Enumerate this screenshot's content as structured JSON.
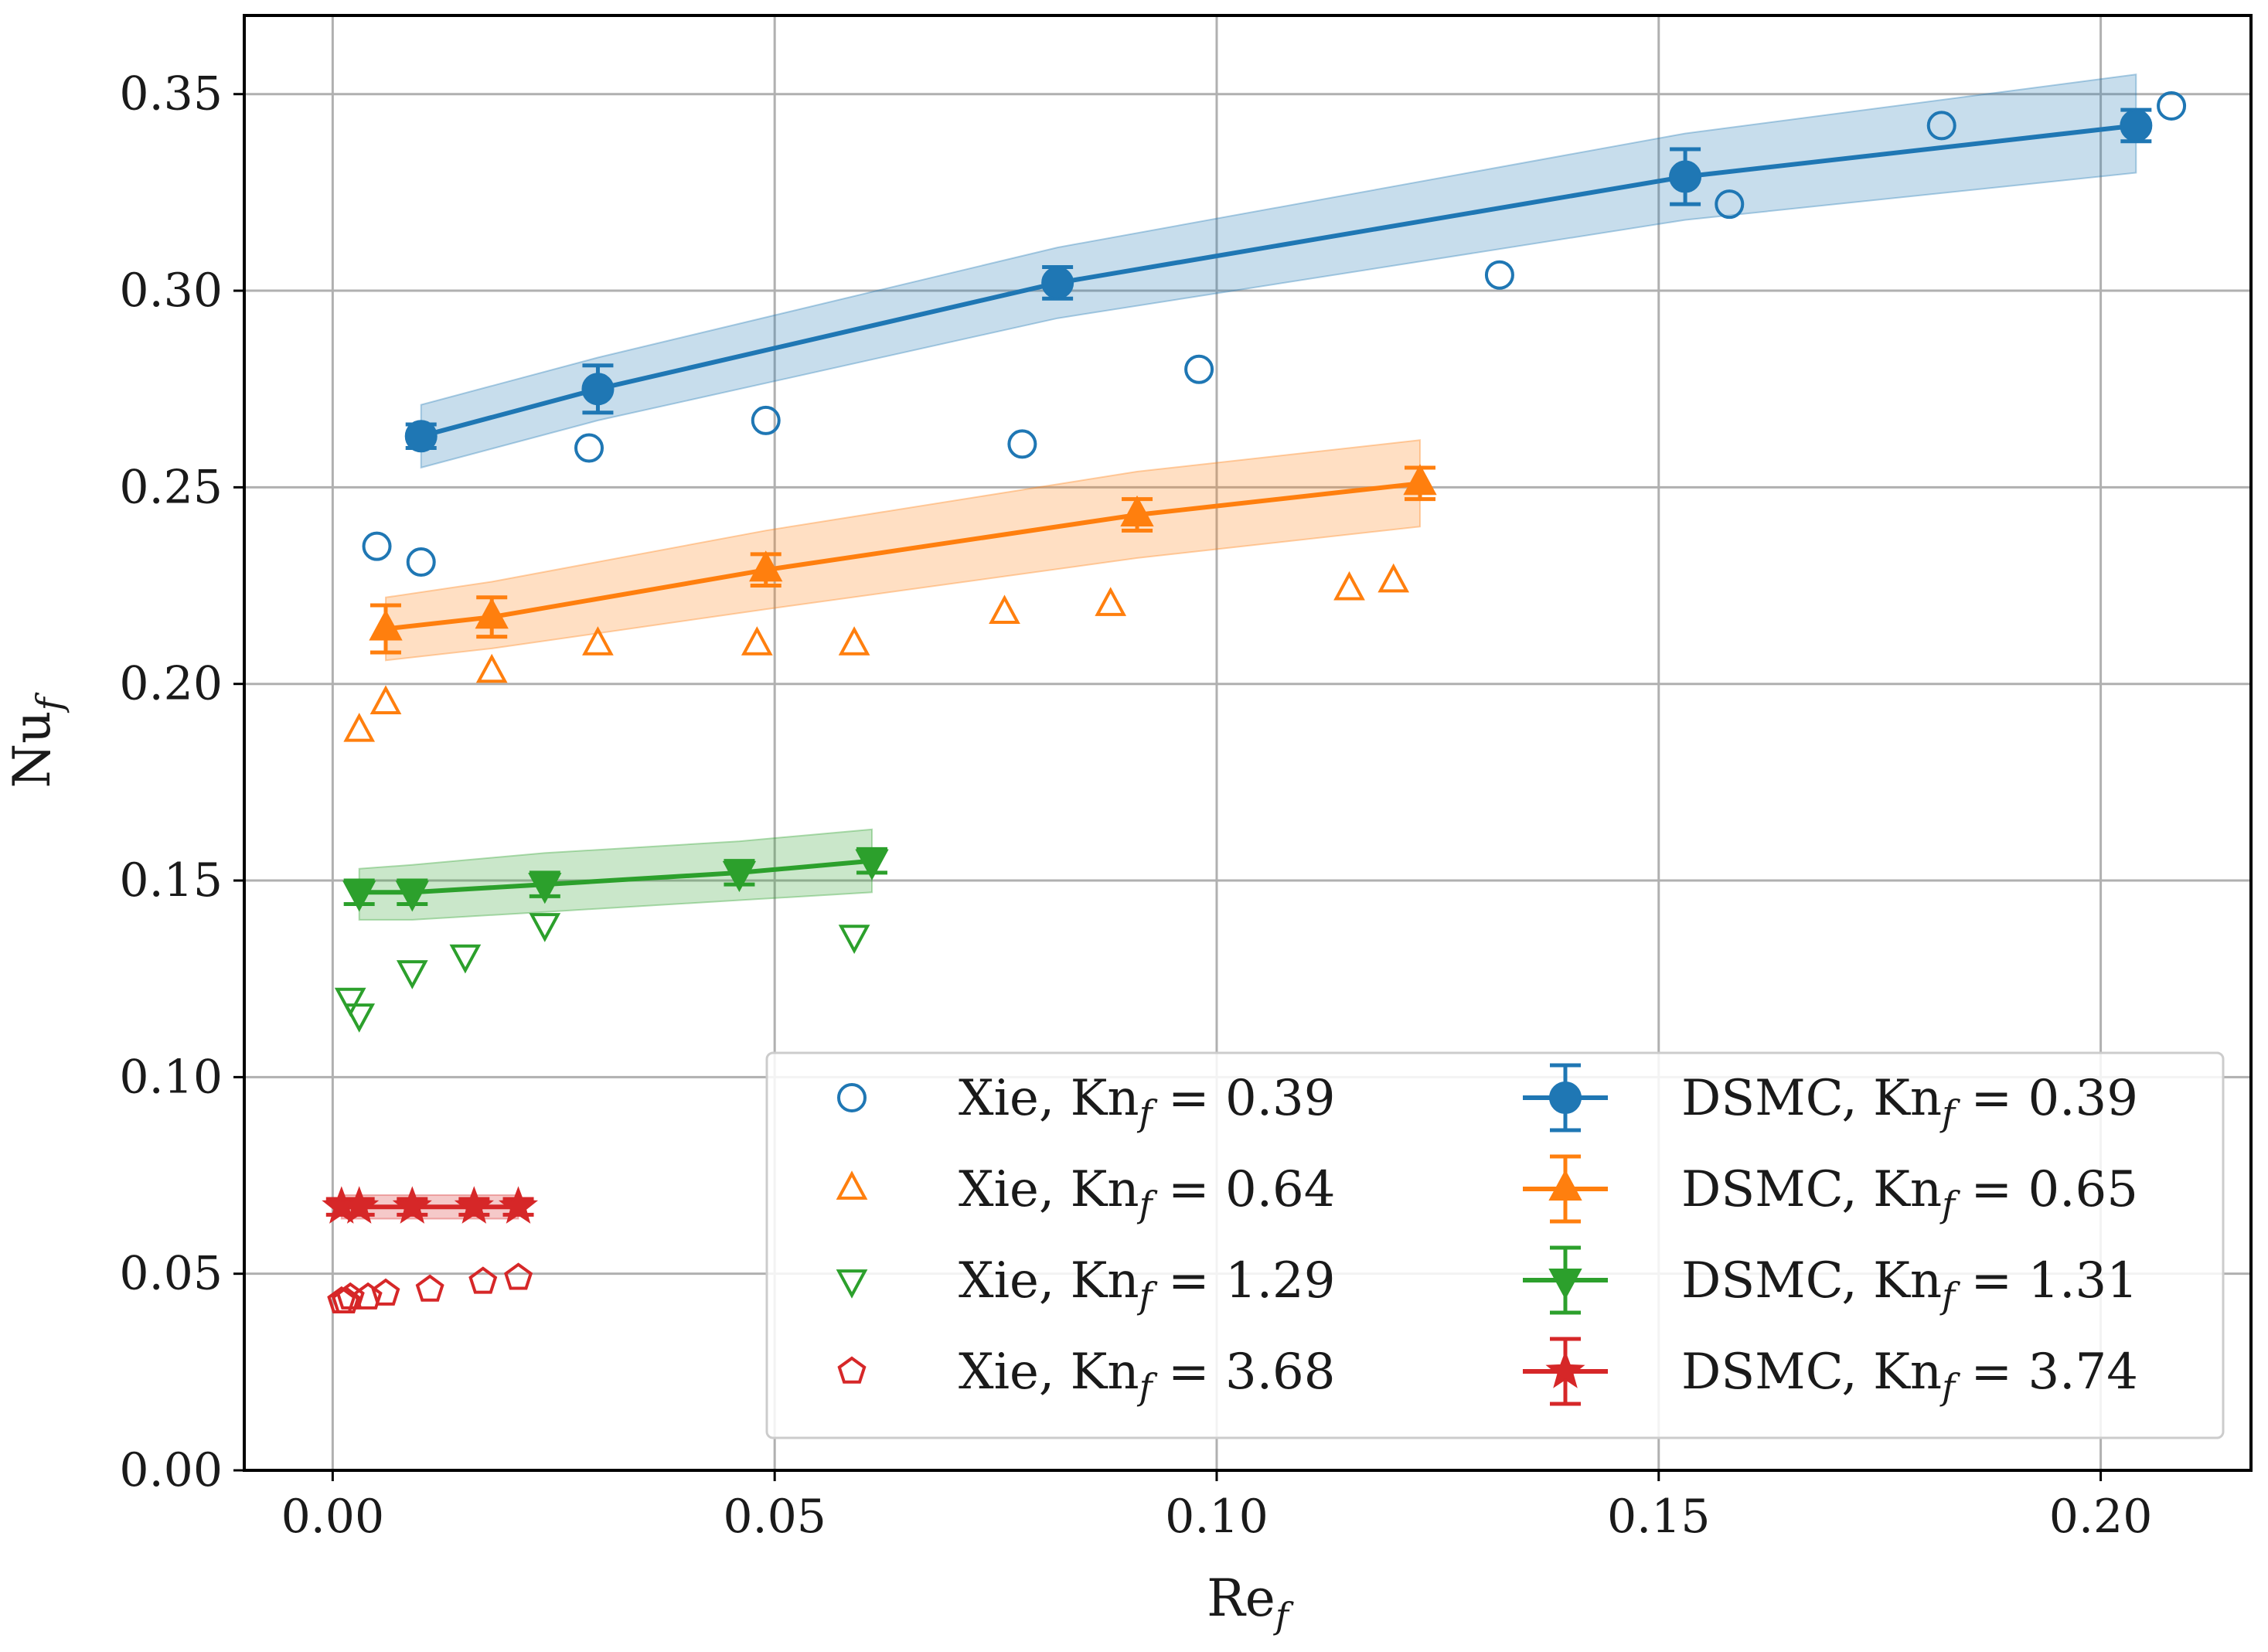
{
  "chart_data": {
    "type": "scatter",
    "title": "",
    "xlabel": "Re",
    "xlabel_sub": "f",
    "ylabel": "Nu",
    "ylabel_sub": "f",
    "xlim": [
      -0.01,
      0.217
    ],
    "ylim": [
      0.0,
      0.37
    ],
    "xticks": [
      0.0,
      0.05,
      0.1,
      0.15,
      0.2
    ],
    "xtick_labels": [
      "0.00",
      "0.05",
      "0.10",
      "0.15",
      "0.20"
    ],
    "yticks": [
      0.0,
      0.05,
      0.1,
      0.15,
      0.2,
      0.25,
      0.3,
      0.35
    ],
    "ytick_labels": [
      "0.00",
      "0.05",
      "0.10",
      "0.15",
      "0.20",
      "0.25",
      "0.30",
      "0.35"
    ],
    "grid": true,
    "legend_position": "lower-right",
    "series": [
      {
        "name": "Xie, Kn_f = 0.39",
        "label_prefix": "Xie, Kn",
        "label_sub": "f",
        "label_value": " = 0.39",
        "kind": "scatter",
        "marker": "circle",
        "color": "#1f77b4",
        "x": [
          0.005,
          0.01,
          0.029,
          0.049,
          0.078,
          0.098,
          0.132,
          0.158,
          0.182,
          0.208
        ],
        "y": [
          0.235,
          0.231,
          0.26,
          0.267,
          0.261,
          0.28,
          0.304,
          0.322,
          0.342,
          0.347
        ]
      },
      {
        "name": "Xie, Kn_f = 0.64",
        "label_prefix": "Xie, Kn",
        "label_sub": "f",
        "label_value": " = 0.64",
        "kind": "scatter",
        "marker": "triangle-up",
        "color": "#ff7f0e",
        "x": [
          0.003,
          0.006,
          0.018,
          0.03,
          0.048,
          0.059,
          0.076,
          0.088,
          0.115,
          0.12
        ],
        "y": [
          0.188,
          0.195,
          0.203,
          0.21,
          0.21,
          0.21,
          0.218,
          0.22,
          0.224,
          0.226
        ]
      },
      {
        "name": "Xie, Kn_f = 1.29",
        "label_prefix": "Xie, Kn",
        "label_sub": "f",
        "label_value": " = 1.29",
        "kind": "scatter",
        "marker": "triangle-down",
        "color": "#2ca02c",
        "x": [
          0.002,
          0.003,
          0.009,
          0.015,
          0.024,
          0.059
        ],
        "y": [
          0.12,
          0.116,
          0.127,
          0.131,
          0.139,
          0.136
        ]
      },
      {
        "name": "Xie, Kn_f = 3.68",
        "label_prefix": "Xie, Kn",
        "label_sub": "f",
        "label_value": " = 3.68",
        "kind": "scatter",
        "marker": "pentagon",
        "color": "#d62728",
        "x": [
          0.001,
          0.0015,
          0.002,
          0.004,
          0.006,
          0.011,
          0.017,
          0.021
        ],
        "y": [
          0.043,
          0.043,
          0.044,
          0.044,
          0.045,
          0.046,
          0.048,
          0.049
        ]
      },
      {
        "name": "DSMC, Kn_f = 0.39",
        "label_prefix": "DSMC, Kn",
        "label_sub": "f",
        "label_value": " = 0.39",
        "kind": "line-errorbar",
        "marker": "circle",
        "color": "#1f77b4",
        "x": [
          0.01,
          0.03,
          0.082,
          0.153,
          0.204
        ],
        "y": [
          0.263,
          0.275,
          0.302,
          0.329,
          0.342
        ],
        "yerr": [
          0.003,
          0.006,
          0.004,
          0.007,
          0.004
        ],
        "band_lower": [
          0.255,
          0.267,
          0.293,
          0.318,
          0.33
        ],
        "band_upper": [
          0.271,
          0.283,
          0.311,
          0.34,
          0.355
        ]
      },
      {
        "name": "DSMC, Kn_f = 0.65",
        "label_prefix": "DSMC, Kn",
        "label_sub": "f",
        "label_value": " = 0.65",
        "kind": "line-errorbar",
        "marker": "triangle-up",
        "color": "#ff7f0e",
        "x": [
          0.006,
          0.018,
          0.049,
          0.091,
          0.123
        ],
        "y": [
          0.214,
          0.217,
          0.229,
          0.243,
          0.251
        ],
        "yerr": [
          0.006,
          0.005,
          0.004,
          0.004,
          0.004
        ],
        "band_lower": [
          0.206,
          0.209,
          0.219,
          0.232,
          0.24
        ],
        "band_upper": [
          0.222,
          0.226,
          0.239,
          0.254,
          0.262
        ]
      },
      {
        "name": "DSMC, Kn_f = 1.31",
        "label_prefix": "DSMC, Kn",
        "label_sub": "f",
        "label_value": " = 1.31",
        "kind": "line-errorbar",
        "marker": "triangle-down",
        "color": "#2ca02c",
        "x": [
          0.003,
          0.009,
          0.024,
          0.046,
          0.061
        ],
        "y": [
          0.147,
          0.147,
          0.149,
          0.152,
          0.155
        ],
        "yerr": [
          0.003,
          0.003,
          0.003,
          0.003,
          0.003
        ],
        "band_lower": [
          0.14,
          0.14,
          0.142,
          0.145,
          0.147
        ],
        "band_upper": [
          0.153,
          0.154,
          0.157,
          0.16,
          0.163
        ]
      },
      {
        "name": "DSMC, Kn_f = 3.74",
        "label_prefix": "DSMC, Kn",
        "label_sub": "f",
        "label_value": " = 3.74",
        "kind": "line-errorbar",
        "marker": "star",
        "color": "#d62728",
        "x": [
          0.001,
          0.003,
          0.009,
          0.016,
          0.021
        ],
        "y": [
          0.067,
          0.067,
          0.067,
          0.067,
          0.067
        ],
        "yerr": [
          0.002,
          0.002,
          0.002,
          0.002,
          0.002
        ],
        "band_lower": [
          0.064,
          0.064,
          0.064,
          0.064,
          0.064
        ],
        "band_upper": [
          0.07,
          0.07,
          0.07,
          0.07,
          0.07
        ]
      }
    ]
  }
}
